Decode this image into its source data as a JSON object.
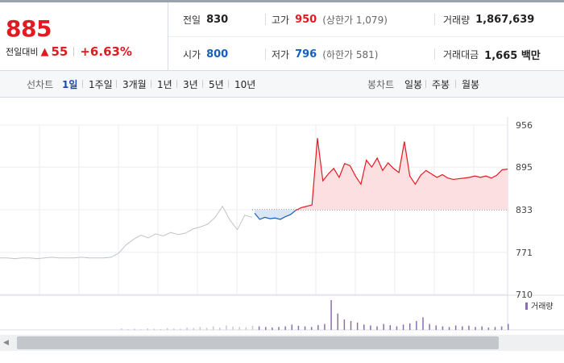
{
  "quote": {
    "price": "885",
    "diff_label": "전일대비",
    "diff_icon": "up-triangle-icon",
    "diff_value": "55",
    "diff_pct": "+6.63%",
    "prev_close_label": "전일",
    "prev_close": "830",
    "high_label": "고가",
    "high": "950",
    "upper_limit": "(상한가 1,079)",
    "volume_label": "거래량",
    "volume": "1,867,639",
    "open_label": "시가",
    "open": "800",
    "low_label": "저가",
    "low": "796",
    "lower_limit": "(하한가 581)",
    "amount_label": "거래대금",
    "amount": "1,665 백만"
  },
  "colors": {
    "up": "#e01b22",
    "down": "#1560bd",
    "history": "#bfc3c8"
  },
  "toolbar": {
    "line_chart_label": "선차트",
    "line_periods": [
      "1일",
      "1주일",
      "3개월",
      "1년",
      "3년",
      "5년",
      "10년"
    ],
    "active_period": "1일",
    "candle_chart_label": "봉차트",
    "candle_periods": [
      "일봉",
      "주봉",
      "월봉"
    ]
  },
  "chart_data": {
    "type": "line",
    "y_ticks": [
      "956",
      "895",
      "833",
      "771",
      "710"
    ],
    "ylim": [
      710,
      956
    ],
    "reference_price": 833,
    "volume_legend": "거래량",
    "series": [
      {
        "values": [
          763,
          763,
          762,
          763,
          763,
          762,
          763,
          764,
          763,
          763,
          763,
          764,
          763,
          763,
          763,
          764,
          770,
          782,
          790,
          796,
          792,
          798,
          795,
          800,
          797,
          799,
          805,
          808,
          812,
          822,
          838,
          818,
          804,
          825,
          822
        ]
      },
      {
        "values": [
          828,
          819,
          822,
          820,
          821,
          819,
          823,
          826,
          832
        ]
      },
      {
        "values": [
          832,
          836,
          838,
          840,
          937,
          875,
          885,
          893,
          880,
          900,
          897,
          882,
          870,
          905,
          895,
          908,
          890,
          901,
          893,
          887,
          932,
          882,
          870,
          883,
          890,
          885,
          880,
          884,
          879,
          877,
          878,
          879,
          880,
          882,
          880,
          882,
          879,
          883,
          891,
          892
        ]
      }
    ],
    "volume": [
      0.05,
      0.03,
      0.04,
      0.02,
      0.05,
      0.04,
      0.03,
      0.06,
      0.05,
      0.04,
      0.08,
      0.06,
      0.1,
      0.07,
      0.12,
      0.08,
      0.15,
      0.11,
      0.1,
      0.09,
      0.14,
      0.12,
      0.1,
      0.08,
      0.1,
      0.12,
      0.18,
      0.14,
      0.12,
      0.1,
      0.16,
      0.2,
      1.0,
      0.55,
      0.35,
      0.3,
      0.25,
      0.18,
      0.15,
      0.12,
      0.2,
      0.16,
      0.12,
      0.18,
      0.22,
      0.3,
      0.42,
      0.2,
      0.15,
      0.12,
      0.1,
      0.15,
      0.12,
      0.14,
      0.1,
      0.12,
      0.08,
      0.1,
      0.12,
      0.2
    ]
  }
}
